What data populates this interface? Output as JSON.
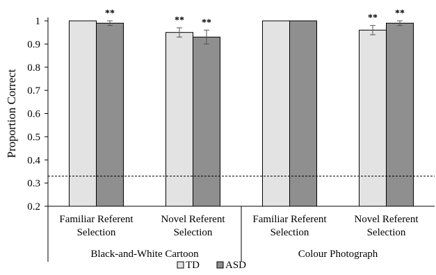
{
  "chart_data": {
    "type": "bar",
    "ylabel": "Proportion Correct",
    "ylim": [
      0.2,
      1.0
    ],
    "yticks": [
      "0.2",
      "0.3",
      "0.4",
      "0.5",
      "0.6",
      "0.7",
      "0.8",
      "0.9",
      "1"
    ],
    "groups": [
      {
        "label": "Black-and-White Cartoon",
        "categories": [
          {
            "line1": "Familiar Referent",
            "line2": "Selection"
          },
          {
            "line1": "Novel Referent",
            "line2": "Selection"
          }
        ]
      },
      {
        "label": "Colour Photograph",
        "categories": [
          {
            "line1": "Familiar Referent",
            "line2": "Selection"
          },
          {
            "line1": "Novel Referent",
            "line2": "Selection"
          }
        ]
      }
    ],
    "series": [
      {
        "name": "TD",
        "color": "#e3e3e3",
        "values": [
          1.0,
          0.95,
          1.0,
          0.96
        ],
        "errors": [
          0,
          0.02,
          0,
          0.02
        ]
      },
      {
        "name": "ASD",
        "color": "#8f8f8f",
        "values": [
          0.99,
          0.93,
          1.0,
          0.99
        ],
        "errors": [
          0.01,
          0.03,
          0,
          0.01
        ]
      }
    ],
    "significance": [
      {
        "series": 1,
        "category": 0,
        "text": "**"
      },
      {
        "series": 0,
        "category": 1,
        "text": "**"
      },
      {
        "series": 1,
        "category": 1,
        "text": "**"
      },
      {
        "series": 0,
        "category": 3,
        "text": "**"
      },
      {
        "series": 1,
        "category": 3,
        "text": "**"
      }
    ],
    "reference_line": 0.33,
    "legend_position": "bottom"
  }
}
